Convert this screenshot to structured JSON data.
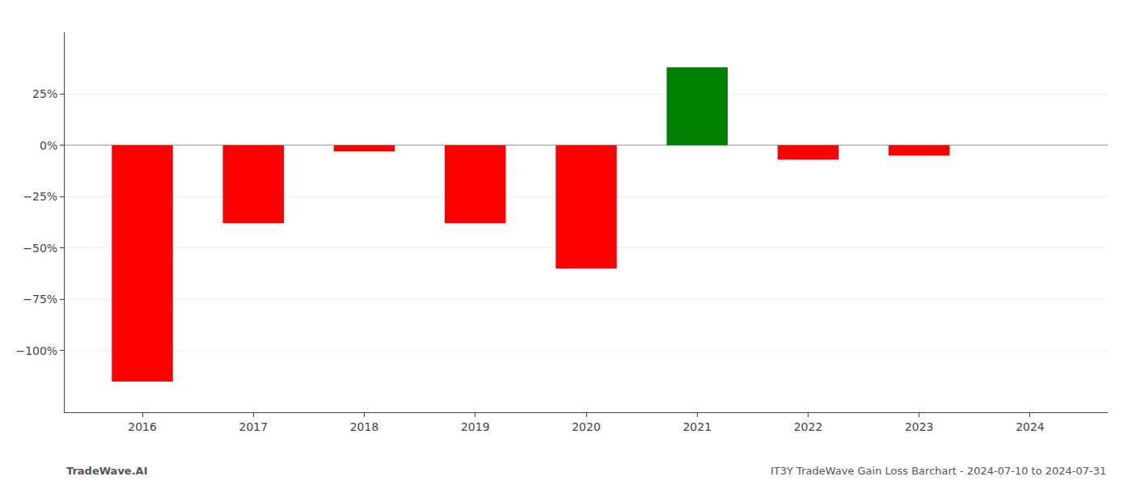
{
  "chart_data": {
    "type": "bar",
    "x": [
      2016,
      2017,
      2018,
      2019,
      2020,
      2021,
      2022,
      2023,
      2024
    ],
    "values": [
      -1.15,
      -0.38,
      -0.03,
      -0.38,
      -0.6,
      0.38,
      -0.07,
      -0.05,
      0.0
    ],
    "colors": [
      "#ff0000",
      "#ff0000",
      "#ff0000",
      "#ff0000",
      "#ff0000",
      "#008000",
      "#ff0000",
      "#ff0000",
      "#ff0000"
    ],
    "xlim": [
      2015.3,
      2024.7
    ],
    "xticks": [
      2016,
      2017,
      2018,
      2019,
      2020,
      2021,
      2022,
      2023,
      2024
    ],
    "ylim": [
      -1.3,
      0.55
    ],
    "yticks": [
      {
        "value": -1.0,
        "label": "−100%"
      },
      {
        "value": -0.75,
        "label": "−75%"
      },
      {
        "value": -0.5,
        "label": "−50%"
      },
      {
        "value": -0.25,
        "label": "−25%"
      },
      {
        "value": 0.0,
        "label": "0%"
      },
      {
        "value": 0.25,
        "label": "25%"
      }
    ],
    "grid": true,
    "annotations": [
      "TradeWave.AI",
      "IT3Y TradeWave Gain Loss Barchart - 2024-07-10 to 2024-07-31"
    ]
  }
}
